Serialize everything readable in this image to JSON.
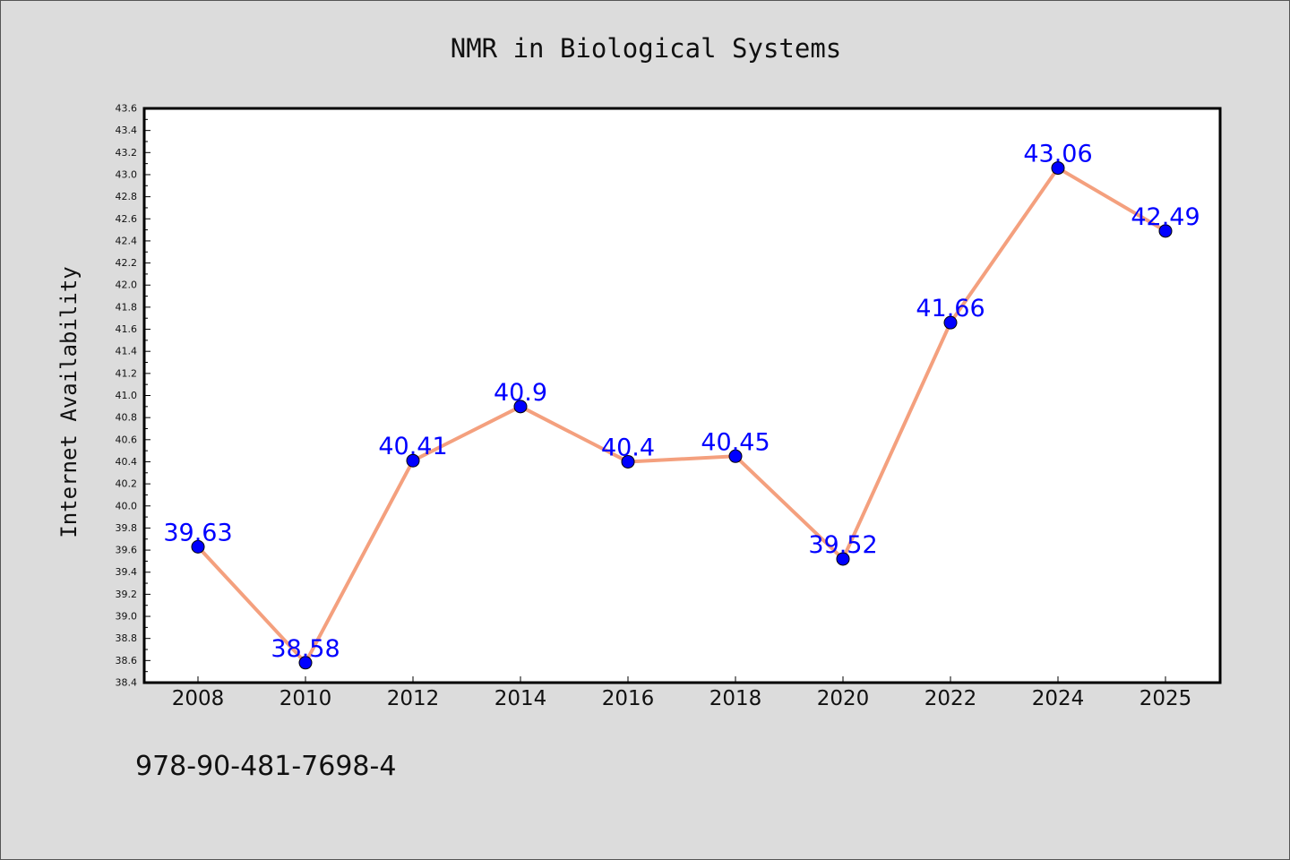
{
  "chart_data": {
    "type": "line",
    "title": "NMR in Biological Systems",
    "ylabel": "Internet Availability",
    "xlabel": "",
    "categories": [
      "2008",
      "2010",
      "2012",
      "2014",
      "2016",
      "2018",
      "2020",
      "2022",
      "2024",
      "2025"
    ],
    "values": [
      39.63,
      38.58,
      40.41,
      40.9,
      40.4,
      40.45,
      39.52,
      41.66,
      43.06,
      42.49
    ],
    "data_labels": [
      "39.63",
      "38.58",
      "40.41",
      "40.9",
      "40.4",
      "40.45",
      "39.52",
      "41.66",
      "43.06",
      "42.49"
    ],
    "ylim": [
      38.4,
      43.6
    ],
    "yticks": [
      "38.4",
      "38.6",
      "38.8",
      "39.0",
      "39.2",
      "39.4",
      "39.6",
      "39.8",
      "40.0",
      "40.2",
      "40.4",
      "40.6",
      "40.8",
      "41.0",
      "41.2",
      "41.4",
      "41.6",
      "41.8",
      "42.0",
      "42.2",
      "42.4",
      "42.6",
      "42.8",
      "43.0",
      "43.2",
      "43.4",
      "43.6"
    ],
    "grid": false,
    "line_color": "#f4a07e",
    "marker_color": "#0000ff",
    "label_color": "#0000ff"
  },
  "footer": {
    "isbn": "978-90-481-7698-4"
  }
}
